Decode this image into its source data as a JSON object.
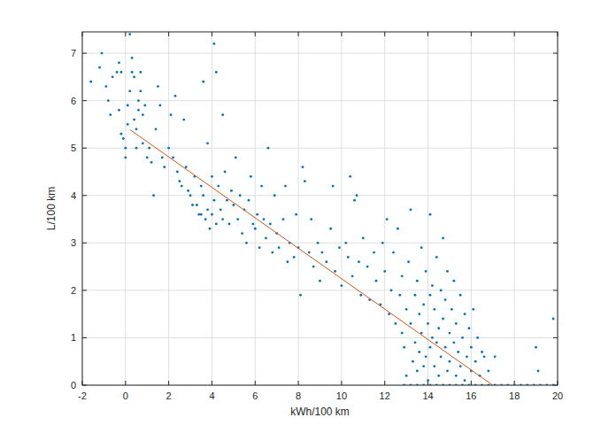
{
  "chart_data": {
    "type": "scatter",
    "x_label": "kWh/100 km",
    "y_label": "L/100 km",
    "xlim": [
      -2,
      20
    ],
    "ylim": [
      0,
      7.45
    ],
    "xticks": [
      -2,
      0,
      2,
      4,
      6,
      8,
      10,
      12,
      14,
      16,
      18,
      20
    ],
    "yticks": [
      0,
      1,
      2,
      3,
      4,
      5,
      6,
      7
    ],
    "grid": true,
    "series": [
      {
        "type": "scatter",
        "color": "#0072bd",
        "marker": "dot",
        "x": [
          -1.6,
          -1.1,
          -1.2,
          -0.9,
          -0.8,
          -0.7,
          -0.6,
          -0.4,
          -0.3,
          -0.2,
          -0.3,
          -0.2,
          -0.1,
          0.0,
          0.0,
          0.1,
          0.1,
          0.2,
          0.2,
          0.3,
          0.3,
          0.4,
          0.4,
          0.5,
          0.5,
          0.6,
          0.6,
          0.7,
          0.7,
          0.8,
          0.8,
          0.9,
          1.0,
          1.1,
          1.2,
          1.3,
          1.4,
          1.5,
          1.6,
          1.7,
          1.8,
          2.0,
          2.1,
          2.2,
          2.3,
          2.4,
          2.5,
          2.6,
          2.7,
          2.8,
          2.9,
          3.0,
          3.1,
          3.2,
          3.3,
          3.4,
          3.5,
          3.5,
          3.6,
          3.6,
          3.7,
          3.8,
          3.8,
          3.9,
          4.0,
          4.0,
          4.1,
          4.1,
          4.2,
          4.2,
          4.3,
          4.4,
          4.5,
          4.5,
          4.6,
          4.7,
          4.8,
          4.9,
          5.0,
          5.1,
          5.2,
          5.3,
          5.4,
          5.5,
          5.6,
          5.7,
          5.8,
          5.9,
          6.0,
          6.1,
          6.2,
          6.3,
          6.4,
          6.5,
          6.6,
          6.7,
          6.8,
          6.9,
          7.0,
          7.1,
          7.3,
          7.4,
          7.5,
          7.6,
          7.8,
          7.9,
          8.0,
          8.1,
          8.2,
          8.3,
          8.5,
          8.6,
          8.7,
          8.9,
          9.0,
          9.1,
          9.3,
          9.5,
          9.6,
          9.7,
          9.9,
          10.0,
          10.2,
          10.3,
          10.4,
          10.5,
          10.6,
          10.7,
          10.8,
          10.9,
          11.0,
          11.2,
          11.3,
          11.5,
          11.6,
          11.8,
          11.9,
          12.0,
          12.1,
          12.2,
          12.3,
          12.4,
          12.5,
          12.6,
          12.7,
          12.8,
          12.8,
          12.9,
          13.0,
          13.0,
          13.1,
          13.2,
          13.2,
          13.3,
          13.4,
          13.4,
          13.5,
          13.5,
          13.6,
          13.6,
          13.7,
          13.7,
          13.8,
          13.8,
          13.9,
          13.9,
          14.0,
          14.0,
          14.1,
          14.1,
          14.1,
          14.2,
          14.2,
          14.3,
          14.3,
          14.4,
          14.4,
          14.5,
          14.5,
          14.6,
          14.6,
          14.7,
          14.7,
          14.8,
          14.8,
          14.9,
          14.9,
          15.0,
          15.0,
          15.1,
          15.2,
          15.2,
          15.3,
          15.3,
          15.4,
          15.5,
          15.5,
          15.6,
          15.7,
          15.7,
          15.8,
          15.9,
          16.0,
          16.0,
          16.1,
          16.2,
          16.3,
          16.4,
          16.5,
          16.6,
          16.8,
          17.1,
          19.0,
          19.8,
          19.1,
          12.9,
          13.2,
          13.5,
          13.8,
          14.1,
          14.4,
          14.7,
          15.0,
          15.3,
          15.6,
          15.9,
          16.2,
          16.5,
          16.8,
          17.1,
          17.4,
          17.7,
          18.0,
          18.3,
          18.6,
          18.9,
          19.2,
          19.5,
          19.8,
          20.0
        ],
        "values": [
          6.4,
          7.0,
          6.7,
          6.3,
          6.0,
          5.7,
          6.5,
          6.6,
          6.8,
          6.6,
          5.8,
          5.3,
          5.2,
          5.0,
          4.8,
          5.5,
          5.9,
          6.2,
          7.4,
          6.9,
          6.6,
          6.5,
          5.6,
          5.4,
          5.0,
          6.0,
          5.8,
          6.6,
          6.2,
          5.7,
          5.1,
          5.9,
          4.8,
          5.0,
          4.7,
          4.0,
          5.4,
          6.3,
          5.9,
          4.8,
          4.6,
          5.0,
          5.7,
          4.8,
          6.1,
          4.5,
          4.3,
          4.2,
          5.6,
          4.6,
          4.1,
          4.0,
          3.8,
          4.4,
          3.8,
          3.6,
          4.2,
          3.6,
          6.4,
          4.0,
          3.5,
          5.1,
          3.7,
          3.3,
          4.4,
          3.6,
          7.2,
          3.9,
          3.4,
          6.6,
          4.2,
          3.7,
          3.5,
          5.7,
          4.5,
          3.9,
          3.4,
          4.1,
          3.8,
          4.8,
          3.5,
          4.0,
          3.2,
          3.7,
          3.0,
          3.9,
          4.4,
          3.4,
          3.3,
          3.6,
          2.9,
          4.2,
          3.5,
          3.1,
          5.0,
          3.4,
          2.8,
          4.0,
          3.2,
          2.9,
          3.5,
          4.2,
          2.6,
          3.0,
          2.7,
          3.6,
          2.9,
          1.9,
          4.6,
          4.3,
          2.8,
          3.5,
          2.5,
          3.0,
          2.2,
          2.8,
          2.6,
          3.3,
          4.2,
          2.4,
          2.9,
          2.1,
          3.0,
          2.7,
          4.4,
          2.3,
          3.9,
          4.0,
          2.6,
          1.9,
          3.1,
          2.5,
          1.8,
          2.8,
          2.2,
          1.7,
          3.0,
          2.4,
          3.5,
          1.5,
          2.0,
          2.8,
          1.3,
          3.3,
          1.9,
          2.3,
          1.1,
          0.8,
          1.6,
          0.2,
          2.6,
          3.7,
          1.3,
          0.5,
          1.9,
          0.9,
          2.2,
          0.3,
          1.5,
          0.7,
          2.9,
          1.1,
          0.4,
          1.7,
          2.4,
          0.6,
          1.3,
          0.1,
          3.6,
          1.9,
          0.8,
          1.0,
          2.1,
          0.4,
          1.6,
          2.7,
          0.9,
          1.2,
          0.2,
          2.0,
          0.6,
          1.4,
          3.1,
          0.8,
          1.8,
          0.3,
          2.4,
          1.1,
          0.5,
          1.6,
          0.9,
          2.2,
          0.2,
          1.3,
          0.7,
          1.9,
          0.4,
          1.0,
          1.5,
          0.1,
          0.6,
          1.2,
          0.3,
          0.8,
          1.6,
          0.5,
          1.0,
          0.2,
          0.7,
          0.6,
          0.3,
          0.6,
          0.8,
          1.4,
          0.3,
          0,
          0,
          0,
          0,
          0,
          0,
          0,
          0,
          0,
          0,
          0,
          0,
          0,
          0,
          0,
          0,
          0,
          0,
          0,
          0,
          0,
          0,
          0,
          0,
          0
        ]
      },
      {
        "type": "line",
        "color": "#d95319",
        "line_style": "solid",
        "x": [
          0.2,
          17.0
        ],
        "values": [
          5.39,
          0
        ]
      }
    ]
  }
}
